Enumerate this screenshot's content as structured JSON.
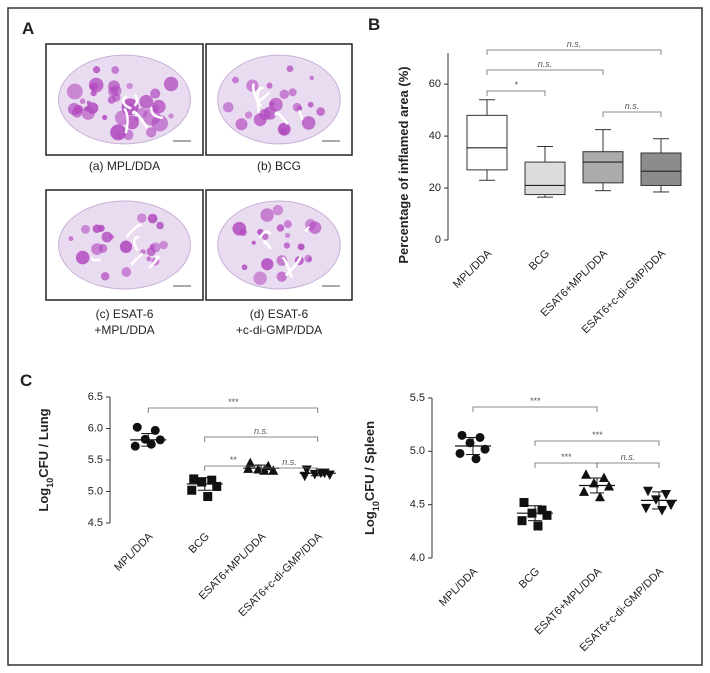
{
  "panel_labels": [
    "A",
    "B",
    "C"
  ],
  "images": [
    {
      "caption": [
        "(a) MPL/DDA"
      ]
    },
    {
      "caption": [
        "(b) BCG"
      ]
    },
    {
      "caption": [
        "(c) ESAT-6",
        "+MPL/DDA"
      ]
    },
    {
      "caption": [
        "(d) ESAT-6",
        "+c-di-GMP/DDA"
      ]
    }
  ],
  "chart_data": [
    {
      "type": "box",
      "ylabel": "Percentage of inflamed area (%)",
      "categories": [
        "MPL/DDA",
        "BCG",
        "ESAT6+MPL/DDA",
        "ESAT6+c-di-GMP/DDA"
      ],
      "colors": [
        "#ffffff",
        "#dcdcdc",
        "#ababab",
        "#8c8c8c"
      ],
      "whislo": [
        23,
        16.5,
        19,
        18.5
      ],
      "q1": [
        27,
        17.5,
        22,
        21
      ],
      "med": [
        35.5,
        21,
        30,
        26.5
      ],
      "q3": [
        48,
        30,
        34,
        33.5
      ],
      "whishi": [
        54,
        36,
        42.5,
        39
      ],
      "ylim": [
        0,
        72
      ],
      "yticks": [
        0,
        20,
        40,
        60
      ],
      "annotations": [
        "*",
        "n.s.",
        "n.s.",
        "n.s."
      ]
    },
    {
      "type": "dot",
      "ylabel": [
        "Log",
        "10",
        "CFU / Lung"
      ],
      "categories": [
        "MPL/DDA",
        "BCG",
        "ESAT6+MPL/DDA",
        "ESAT6+c-di-GMP/DDA"
      ],
      "markers": [
        "circle",
        "square",
        "triangle-up",
        "triangle-down"
      ],
      "points": [
        [
          6.02,
          5.97,
          5.83,
          5.82,
          5.72,
          5.75
        ],
        [
          5.2,
          5.18,
          5.15,
          5.08,
          5.02,
          4.92
        ],
        [
          5.45,
          5.4,
          5.35,
          5.33,
          5.36,
          5.33
        ],
        [
          5.35,
          5.3,
          5.28,
          5.27,
          5.25,
          5.3
        ]
      ],
      "means": [
        5.82,
        5.12,
        5.37,
        5.29
      ],
      "errors": [
        0.1,
        0.1,
        0.05,
        0.04
      ],
      "ylim": [
        4.5,
        6.5
      ],
      "yticks": [
        4.5,
        {
          "value": 5,
          "label": "5.0"
        },
        5.5,
        {
          "value": 6,
          "label": "6.0"
        },
        6.5
      ],
      "annotations": [
        "***",
        "n.s.",
        "**",
        "n.s."
      ]
    },
    {
      "type": "dot",
      "ylabel": [
        "Log",
        "10",
        "CFU / Spleen"
      ],
      "categories": [
        "MPL/DDA",
        "BCG",
        "ESAT6+MPL/DDA",
        "ESAT6+c-di-GMP/DDA"
      ],
      "markers": [
        "circle",
        "square",
        "triangle-up",
        "triangle-down"
      ],
      "points": [
        [
          5.15,
          5.13,
          5.08,
          5.02,
          4.98,
          4.93
        ],
        [
          4.52,
          4.45,
          4.42,
          4.4,
          4.35,
          4.3
        ],
        [
          4.78,
          4.75,
          4.7,
          4.67,
          4.62,
          4.57
        ],
        [
          4.63,
          4.6,
          4.55,
          4.5,
          4.47,
          4.45
        ]
      ],
      "means": [
        5.05,
        4.42,
        4.68,
        4.54
      ],
      "errors": [
        0.08,
        0.07,
        0.07,
        0.08
      ],
      "ylim": [
        4,
        5.5
      ],
      "yticks": [
        {
          "value": 4,
          "label": "4.0"
        },
        4.5,
        {
          "value": 5,
          "label": "5.0"
        },
        5.5
      ],
      "annotations": [
        "***",
        "***",
        "***",
        "n.s."
      ]
    }
  ]
}
